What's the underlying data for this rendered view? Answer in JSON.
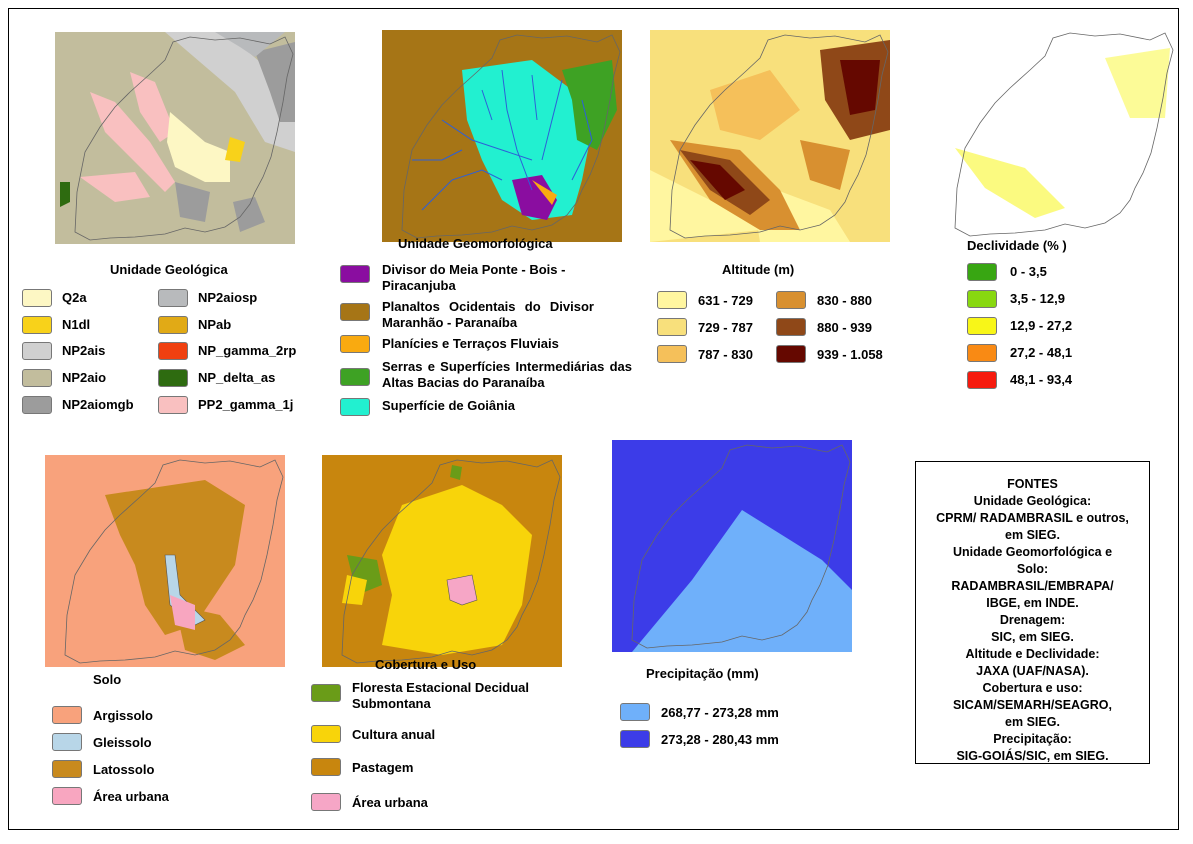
{
  "colors": {
    "q2a": "#fdf7c4",
    "n1dl": "#f8d21a",
    "np2ais": "#d0d0d0",
    "np2aio": "#c2bd9d",
    "np2aiomgb": "#9c9c9c",
    "np2aiosp": "#b8babc",
    "npab": "#e1aa16",
    "npgamma": "#f04010",
    "npdelta": "#2e6b10",
    "pp2gamma": "#f9c0c0",
    "geo_divisor": "#8a0da0",
    "geo_planaltos": "#a67516",
    "geo_planicies": "#f9aa10",
    "geo_serras": "#3ea224",
    "geo_goiania": "#22f0d0",
    "alt1": "#fff6a0",
    "alt2": "#f8e07c",
    "alt3": "#f5c05a",
    "alt4": "#d89030",
    "alt5": "#8f4818",
    "alt6": "#650800",
    "dec1": "#38a612",
    "dec2": "#88d810",
    "dec3": "#f8f618",
    "dec4": "#f98a14",
    "dec5": "#f61a0e",
    "solo_arg": "#f8a27c",
    "solo_gle": "#b8d6e8",
    "solo_lat": "#c88a1e",
    "solo_urb": "#f8a6c0",
    "cob_flor": "#6a9c18",
    "cob_cult": "#f8d40a",
    "cob_past": "#c8860e",
    "cob_urb": "#f6a6c6",
    "prec1": "#6fb0fa",
    "prec2": "#3c3ce8"
  },
  "geologia": {
    "title": "Unidade Geológica",
    "items": [
      "Q2a",
      "N1dl",
      "NP2ais",
      "NP2aio",
      "NP2aiomgb",
      "NP2aiosp",
      "NPab",
      "NP_gamma_2rp",
      "NP_delta_as",
      "PP2_gamma_1j"
    ]
  },
  "geomorfologia": {
    "title": "Unidade Geomorfológica",
    "items": [
      "Divisor do Meia Ponte - Bois - Piracanjuba",
      "Planaltos Ocidentais do Divisor Maranhão - Paranaíba",
      "Planícies e Terraços Fluviais",
      "Serras e Superfícies Intermediárias das Altas Bacias do Paranaíba",
      "Superfície de Goiânia"
    ]
  },
  "altitude": {
    "title": "Altitude (m)",
    "items": [
      "631 - 729",
      "729 - 787",
      "787 - 830",
      "830 - 880",
      "880 - 939",
      "939 - 1.058"
    ]
  },
  "declividade": {
    "title": "Declividade (% )",
    "items": [
      "0 - 3,5",
      "3,5 - 12,9",
      "12,9 - 27,2",
      "27,2 - 48,1",
      "48,1 - 93,4"
    ]
  },
  "solo": {
    "title": "Solo",
    "items": [
      "Argissolo",
      "Gleissolo",
      "Latossolo",
      "Área urbana"
    ]
  },
  "cobertura": {
    "title": "Cobertura e Uso",
    "items": [
      "Floresta Estacional Decidual Submontana",
      "Cultura anual",
      "Pastagem",
      "Área urbana"
    ]
  },
  "precipitacao": {
    "title": "Precipitação (mm)",
    "items": [
      "268,77 - 273,28 mm",
      "273,28 - 280,43 mm"
    ]
  },
  "fontes": {
    "lines": [
      "FONTES",
      "Unidade Geológica:",
      "CPRM/ RADAMBRASIL e outros,",
      "em SIEG.",
      "Unidade Geomorfológica e",
      "Solo:",
      "RADAMBRASIL/EMBRAPA/",
      "IBGE, em INDE.",
      "Drenagem:",
      "SIC, em SIEG.",
      "Altitude e Declividade:",
      "JAXA (UAF/NASA).",
      "Cobertura e uso:",
      "SICAM/SEMARH/SEAGRO,",
      "em SIEG.",
      "Precipitação:",
      "SIG-GOIÁS/SIC, em SIEG."
    ]
  }
}
